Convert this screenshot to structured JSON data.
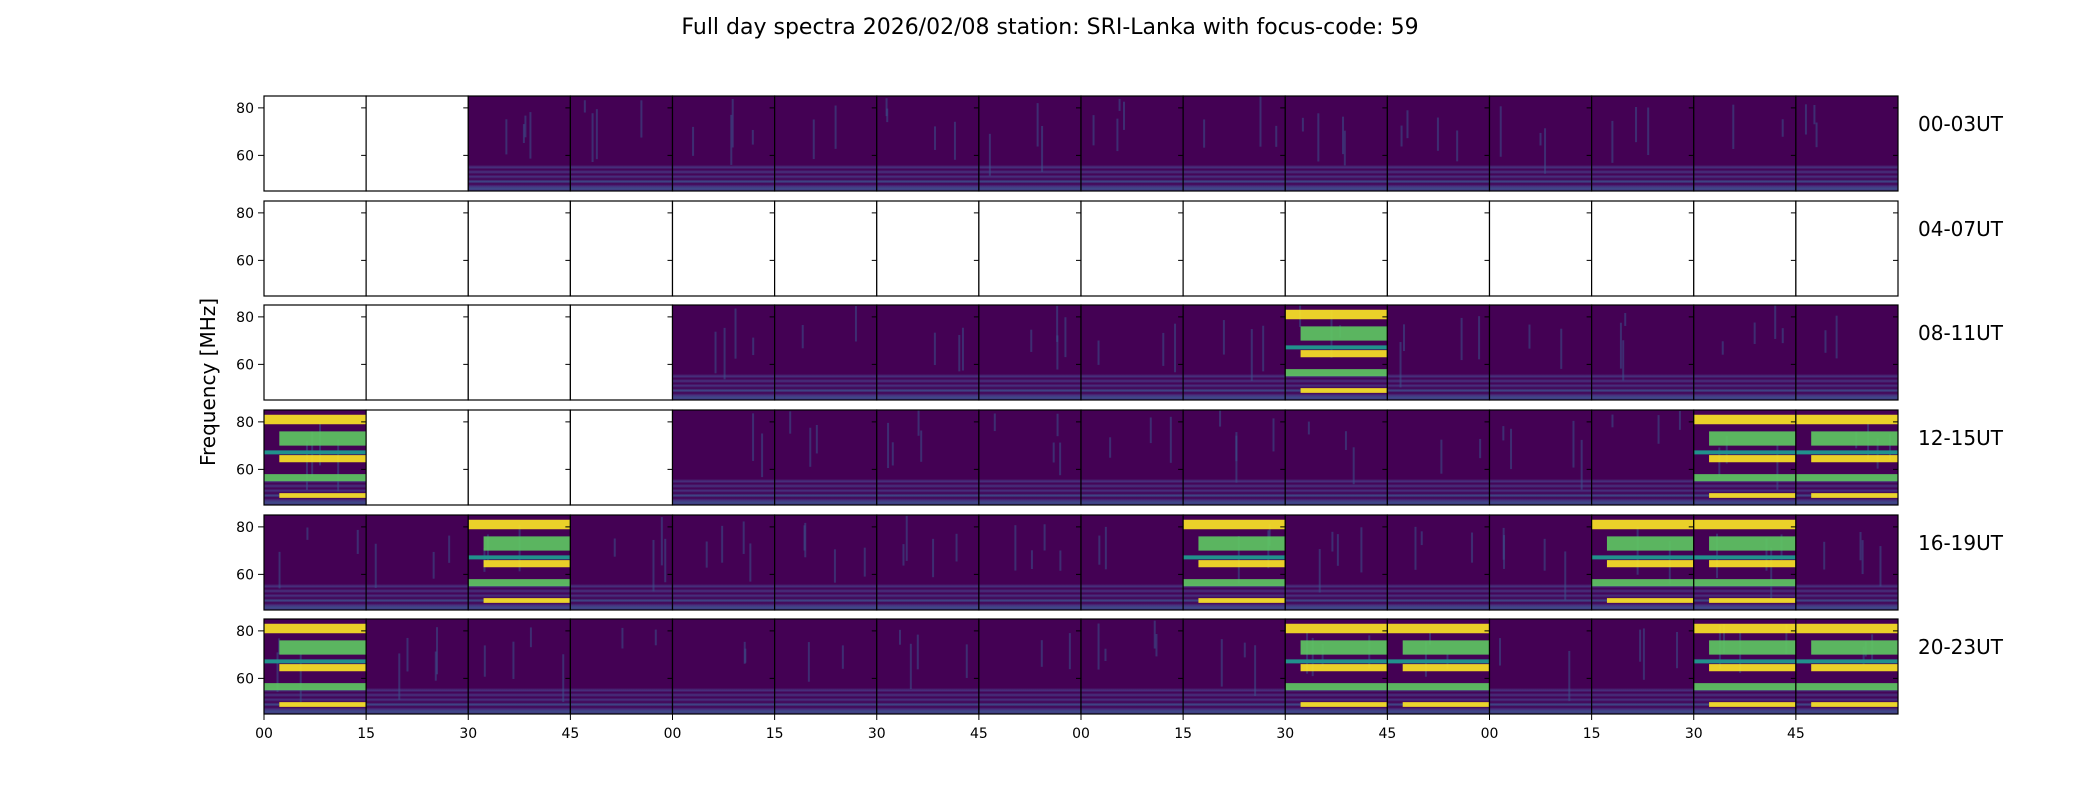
{
  "chart_data": {
    "type": "heatmap",
    "title": "Full day spectra 2026/02/08 station: SRI-Lanka with focus-code: 59",
    "ylabel": "Frequency [MHz]",
    "xlabel": "",
    "ylim": [
      45,
      85
    ],
    "yticks": [
      "80",
      "60"
    ],
    "xticks": [
      "00",
      "15",
      "30",
      "45",
      "00",
      "15",
      "30",
      "45",
      "00",
      "15",
      "30",
      "45",
      "00",
      "15",
      "30",
      "45"
    ],
    "colormap": [
      "#440154",
      "#3b528b",
      "#21918c",
      "#5ec962",
      "#fde725"
    ],
    "rows": [
      {
        "label": "00-03UT",
        "present": [
          0,
          0,
          1,
          1,
          1,
          1,
          1,
          1,
          1,
          1,
          1,
          1,
          1,
          1,
          1,
          1
        ],
        "hot": []
      },
      {
        "label": "04-07UT",
        "present": [
          0,
          0,
          0,
          0,
          0,
          0,
          0,
          0,
          0,
          0,
          0,
          0,
          0,
          0,
          0,
          0
        ],
        "hot": []
      },
      {
        "label": "08-11UT",
        "present": [
          0,
          0,
          0,
          0,
          1,
          1,
          1,
          1,
          1,
          1,
          1,
          1,
          1,
          1,
          1,
          1
        ],
        "hot": [
          10
        ]
      },
      {
        "label": "12-15UT",
        "present": [
          1,
          0,
          0,
          0,
          1,
          1,
          1,
          1,
          1,
          1,
          1,
          1,
          1,
          1,
          1,
          1
        ],
        "hot": [
          0,
          14,
          15
        ]
      },
      {
        "label": "16-19UT",
        "present": [
          1,
          1,
          1,
          1,
          1,
          1,
          1,
          1,
          1,
          1,
          1,
          1,
          1,
          1,
          1,
          1
        ],
        "hot": [
          2,
          9,
          13,
          14
        ]
      },
      {
        "label": "20-23UT",
        "present": [
          1,
          1,
          1,
          1,
          1,
          1,
          1,
          1,
          1,
          1,
          1,
          1,
          1,
          1,
          1,
          1
        ],
        "hot": [
          0,
          10,
          11,
          14,
          15
        ]
      }
    ]
  }
}
